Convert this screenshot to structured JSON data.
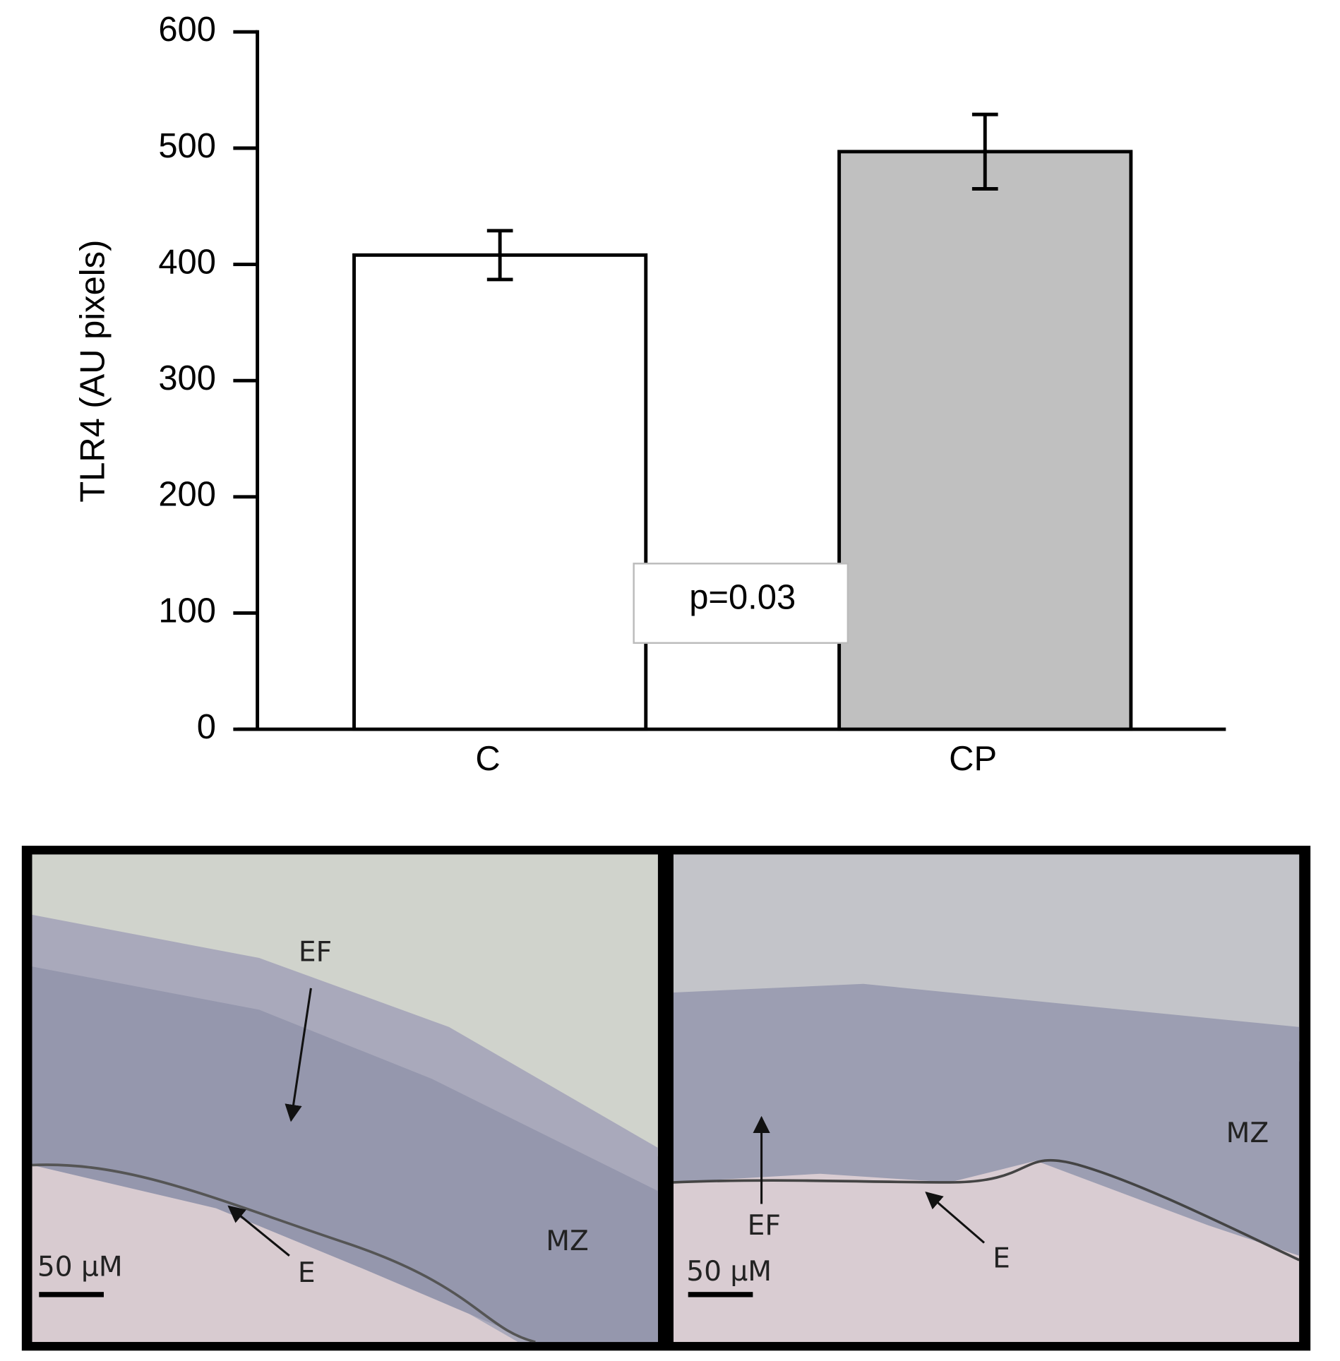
{
  "chart_data": {
    "type": "bar",
    "categories": [
      "C",
      "CP"
    ],
    "values": [
      408,
      497
    ],
    "errors": [
      21,
      32
    ],
    "colors": [
      "#ffffff",
      "#c0c0c0"
    ],
    "ylabel": "TLR4 (AU pixels)",
    "ylim": [
      0,
      600
    ],
    "yticks": [
      0,
      100,
      200,
      300,
      400,
      500,
      600
    ],
    "annotation": "p=0.03"
  },
  "micrographs": [
    {
      "labels": [
        "EF",
        "E",
        "MZ"
      ],
      "scale_bar": "50 μM"
    },
    {
      "labels": [
        "EF",
        "E",
        "MZ"
      ],
      "scale_bar": "50 μM"
    }
  ]
}
